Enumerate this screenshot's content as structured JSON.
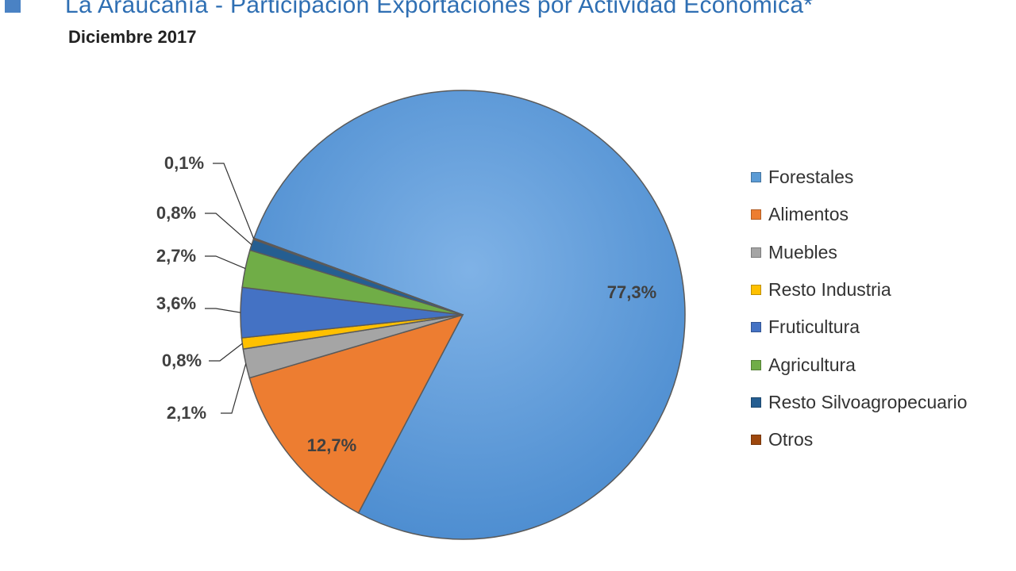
{
  "header": {
    "title": "La Araucanía - Participación Exportaciones por Actividad Económica*",
    "subtitle": "Diciembre 2017",
    "title_color": "#2f6fb3",
    "square_color": "#4a82c4"
  },
  "chart_data": {
    "type": "pie",
    "title": "La Araucanía - Participación Exportaciones por Actividad Económica*",
    "subtitle": "Diciembre 2017",
    "unit": "%",
    "legend_position": "right",
    "slices": [
      {
        "name": "Forestales",
        "value": 77.3,
        "label": "77,3%",
        "color": "#5b9bd5"
      },
      {
        "name": "Alimentos",
        "value": 12.7,
        "label": "12,7%",
        "color": "#ed7d31"
      },
      {
        "name": "Muebles",
        "value": 2.1,
        "label": "2,1%",
        "color": "#a5a5a5"
      },
      {
        "name": "Resto Industria",
        "value": 0.8,
        "label": "0,8%",
        "color": "#ffc000"
      },
      {
        "name": "Fruticultura",
        "value": 3.6,
        "label": "3,6%",
        "color": "#4472c4"
      },
      {
        "name": "Agricultura",
        "value": 2.7,
        "label": "2,7%",
        "color": "#70ad47"
      },
      {
        "name": "Resto Silvoagropecuario",
        "value": 0.8,
        "label": "0,8%",
        "color": "#255e91"
      },
      {
        "name": "Otros",
        "value": 0.1,
        "label": "0,1%",
        "color": "#9e480e"
      }
    ]
  }
}
